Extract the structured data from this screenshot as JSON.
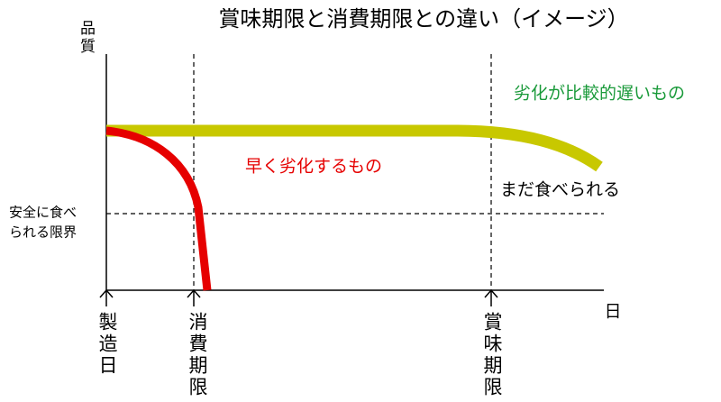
{
  "title": "賞味期限と消費期限との違い（イメージ）",
  "y_axis_label": "品質",
  "x_axis_label": "日",
  "threshold_label": [
    "安全に食べ",
    "られる限界"
  ],
  "markers": [
    "製造日",
    "消費期限",
    "賞味期限"
  ],
  "curves": {
    "slow": "劣化が比較的遅いもの",
    "fast": "早く劣化するもの",
    "still_edible": "まだ食べられる"
  }
}
